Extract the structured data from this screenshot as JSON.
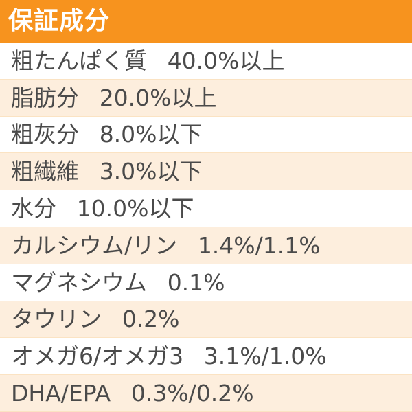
{
  "header": {
    "title": "保証成分"
  },
  "items": [
    {
      "label": "粗たんぱく質",
      "value": "40.0%以上"
    },
    {
      "label": "脂肪分",
      "value": "20.0%以上"
    },
    {
      "label": "粗灰分",
      "value": "8.0%以下"
    },
    {
      "label": "粗繊維",
      "value": "3.0%以下"
    },
    {
      "label": "水分",
      "value": "10.0%以下"
    },
    {
      "label": "カルシウム/リン",
      "value": "1.4%/1.1%"
    },
    {
      "label": "マグネシウム",
      "value": "0.1%"
    },
    {
      "label": "タウリン",
      "value": "0.2%"
    },
    {
      "label": "オメガ6/オメガ3",
      "value": "3.1%/1.0%"
    },
    {
      "label": "DHA/EPA",
      "value": "0.3%/0.2%"
    }
  ],
  "colors": {
    "header_bg": "#f7931e",
    "row_alt_bg": "#fdeedd",
    "text": "#4a4a4a"
  }
}
